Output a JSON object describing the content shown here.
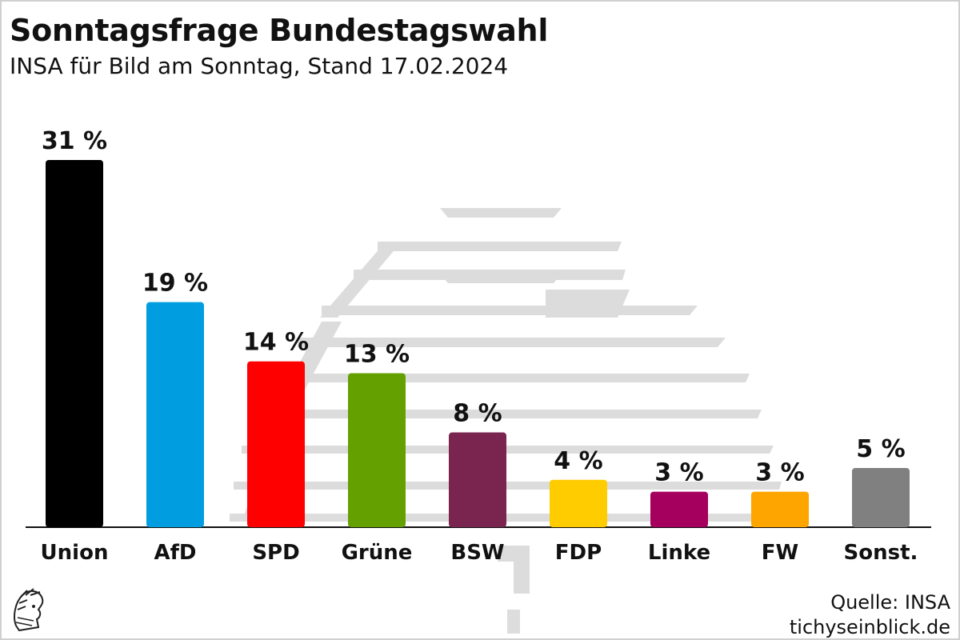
{
  "title": "Sonntagsfrage Bundestagswahl",
  "subtitle": "INSA für Bild am Sonntag, Stand 17.02.2024",
  "source": {
    "line1": "Quelle: INSA",
    "line2": "tichyseinblick.de"
  },
  "chart_data": {
    "type": "bar",
    "categories": [
      "Union",
      "AfD",
      "SPD",
      "Grüne",
      "BSW",
      "FDP",
      "Linke",
      "FW",
      "Sonst."
    ],
    "values": [
      31,
      19,
      14,
      13,
      8,
      4,
      3,
      3,
      5
    ],
    "value_labels": [
      "31 %",
      "19 %",
      "14 %",
      "13 %",
      "8 %",
      "4 %",
      "3 %",
      "3 %",
      "5 %"
    ],
    "colors": [
      "#000000",
      "#009ee0",
      "#ff0000",
      "#64a100",
      "#7a2450",
      "#ffcc00",
      "#a6005f",
      "#ffa500",
      "#808080"
    ],
    "ylim": [
      0,
      31
    ],
    "grid": false,
    "legend": "none"
  }
}
